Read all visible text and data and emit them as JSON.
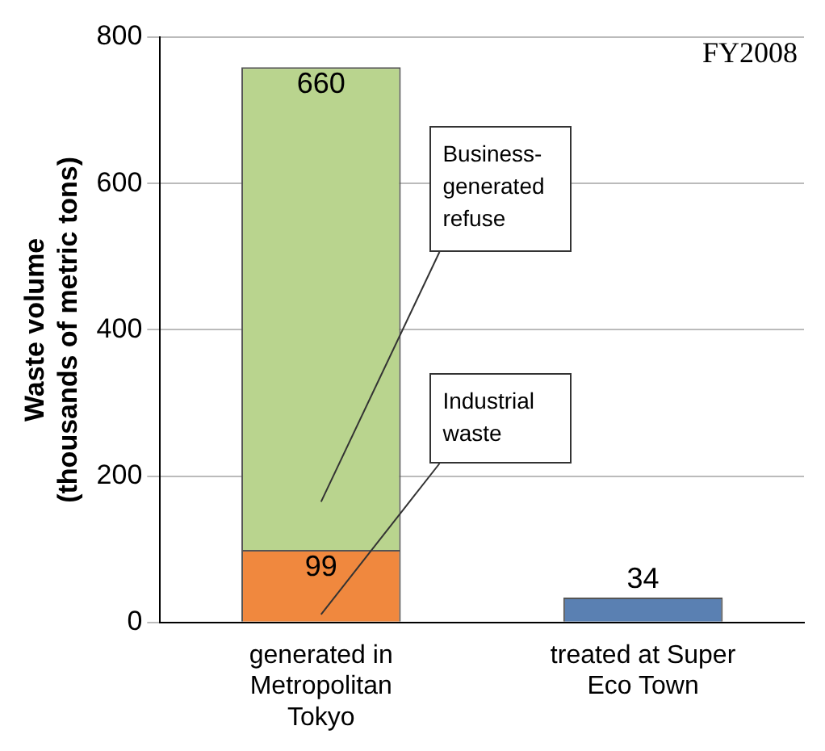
{
  "chart_data": {
    "type": "bar",
    "stacked": true,
    "ylabel": "Waste volume\n(thousands of metric tons)",
    "categories": [
      "generated in Metropolitan Tokyo",
      "treated at Super Eco Town"
    ],
    "series": [
      {
        "name": "Industrial waste",
        "color": "#f0883e",
        "values": [
          99,
          null
        ]
      },
      {
        "name": "Business-generated refuse",
        "color": "#b9d48e",
        "values": [
          660,
          null
        ]
      },
      {
        "color": "#5a80b2",
        "values": [
          null,
          34
        ]
      }
    ],
    "ylim": [
      0,
      800
    ],
    "yticks": [
      0,
      200,
      400,
      600,
      800
    ],
    "grid": "y",
    "legend": false,
    "data_labels": true,
    "annotations": [
      "FY2008"
    ]
  }
}
